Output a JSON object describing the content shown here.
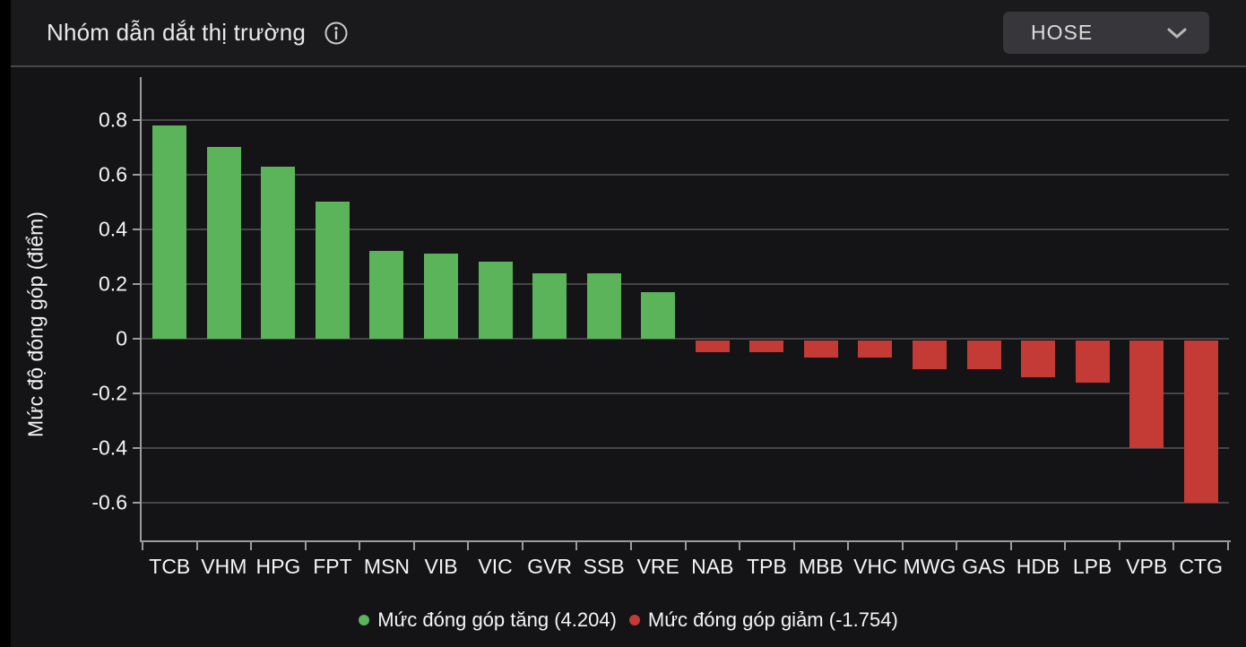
{
  "header": {
    "title": "Nhóm dẫn dắt thị trường",
    "exchange": "HOSE"
  },
  "chart_data": {
    "type": "bar",
    "title": "Nhóm dẫn dắt thị trường",
    "xlabel": "",
    "ylabel": "Mức độ đóng góp (điểm)",
    "ylim": [
      -0.74,
      0.92
    ],
    "grid": true,
    "legend_position": "bottom",
    "yticks": [
      "0.8",
      "0.6",
      "0.4",
      "0.2",
      "0",
      "-0.2",
      "-0.4",
      "-0.6"
    ],
    "ytick_values": [
      0.8,
      0.6,
      0.4,
      0.2,
      0,
      -0.2,
      -0.4,
      -0.6
    ],
    "categories": [
      "TCB",
      "VHM",
      "HPG",
      "FPT",
      "MSN",
      "VIB",
      "VIC",
      "GVR",
      "SSB",
      "VRE",
      "NAB",
      "TPB",
      "MBB",
      "VHC",
      "MWG",
      "GAS",
      "HDB",
      "LPB",
      "VPB",
      "CTG"
    ],
    "values": [
      0.78,
      0.7,
      0.63,
      0.5,
      0.32,
      0.31,
      0.28,
      0.24,
      0.24,
      0.17,
      -0.05,
      -0.05,
      -0.07,
      -0.07,
      -0.11,
      -0.11,
      -0.14,
      -0.16,
      -0.4,
      -0.6
    ],
    "colors": {
      "positive": "#5bb35a",
      "negative": "#c43b35"
    },
    "legend": [
      {
        "id": "increase",
        "label": "Mức đóng góp tăng (4.204)",
        "color": "#5bb35a"
      },
      {
        "id": "decrease",
        "label": "Mức đóng góp giảm (-1.754)",
        "color": "#c43b35"
      }
    ]
  }
}
